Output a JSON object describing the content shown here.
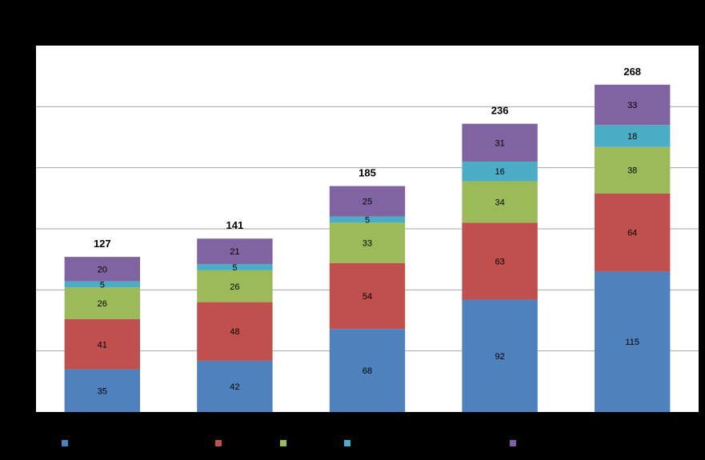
{
  "chart_data": {
    "type": "bar",
    "stacked": true,
    "categories": [
      "",
      "",
      "",
      "",
      ""
    ],
    "series": [
      {
        "values": [
          35,
          42,
          68,
          92,
          115
        ],
        "color": "#4F81BD"
      },
      {
        "values": [
          41,
          48,
          54,
          63,
          64
        ],
        "color": "#C0504D"
      },
      {
        "values": [
          26,
          26,
          33,
          34,
          38
        ],
        "color": "#9BBB59"
      },
      {
        "values": [
          5,
          5,
          5,
          16,
          18
        ],
        "color": "#4BACC6"
      },
      {
        "values": [
          20,
          21,
          25,
          31,
          33
        ],
        "color": "#8064A2"
      }
    ],
    "totals": [
      127,
      141,
      185,
      236,
      268
    ],
    "ylim": [
      0,
      300
    ],
    "grid": true,
    "legend": "bottom",
    "title": "",
    "xlabel": "",
    "ylabel": "",
    "colors": {
      "background": "#000000",
      "plot_area": "#FFFFFF",
      "gridline": "#A6A6A6"
    }
  }
}
